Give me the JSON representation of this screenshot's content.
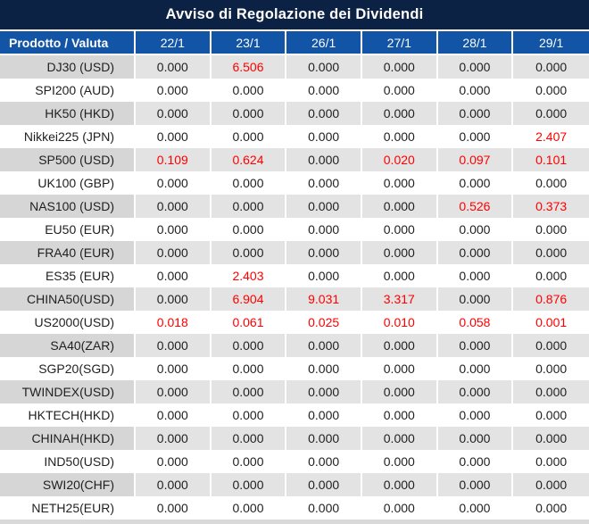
{
  "title": "Avviso di Regolazione dei Dividendi",
  "colors": {
    "title_bg": "#0c2245",
    "header_bg": "#1254a5",
    "row_stripe_label": "#d6d6d6",
    "row_stripe_value": "#e3e3e3",
    "grid_line": "#ffffff",
    "value_text": "#1f1f1f",
    "highlight_red": "#fe0000",
    "bottom_strip": "#d9d9d9"
  },
  "table": {
    "product_header": "Prodotto / Valuta",
    "date_headers": [
      "22/1",
      "23/1",
      "26/1",
      "27/1",
      "28/1",
      "29/1"
    ],
    "rows": [
      {
        "product": "DJ30 (USD)",
        "values": [
          "0.000",
          "6.506",
          "0.000",
          "0.000",
          "0.000",
          "0.000"
        ],
        "red": [
          0,
          1,
          0,
          0,
          0,
          0
        ]
      },
      {
        "product": "SPI200 (AUD)",
        "values": [
          "0.000",
          "0.000",
          "0.000",
          "0.000",
          "0.000",
          "0.000"
        ],
        "red": [
          0,
          0,
          0,
          0,
          0,
          0
        ]
      },
      {
        "product": "HK50 (HKD)",
        "values": [
          "0.000",
          "0.000",
          "0.000",
          "0.000",
          "0.000",
          "0.000"
        ],
        "red": [
          0,
          0,
          0,
          0,
          0,
          0
        ]
      },
      {
        "product": "Nikkei225 (JPN)",
        "values": [
          "0.000",
          "0.000",
          "0.000",
          "0.000",
          "0.000",
          "2.407"
        ],
        "red": [
          0,
          0,
          0,
          0,
          0,
          1
        ]
      },
      {
        "product": "SP500 (USD)",
        "values": [
          "0.109",
          "0.624",
          "0.000",
          "0.020",
          "0.097",
          "0.101"
        ],
        "red": [
          1,
          1,
          0,
          1,
          1,
          1
        ]
      },
      {
        "product": "UK100 (GBP)",
        "values": [
          "0.000",
          "0.000",
          "0.000",
          "0.000",
          "0.000",
          "0.000"
        ],
        "red": [
          0,
          0,
          0,
          0,
          0,
          0
        ]
      },
      {
        "product": "NAS100 (USD)",
        "values": [
          "0.000",
          "0.000",
          "0.000",
          "0.000",
          "0.526",
          "0.373"
        ],
        "red": [
          0,
          0,
          0,
          0,
          1,
          1
        ]
      },
      {
        "product": "EU50 (EUR)",
        "values": [
          "0.000",
          "0.000",
          "0.000",
          "0.000",
          "0.000",
          "0.000"
        ],
        "red": [
          0,
          0,
          0,
          0,
          0,
          0
        ]
      },
      {
        "product": "FRA40 (EUR)",
        "values": [
          "0.000",
          "0.000",
          "0.000",
          "0.000",
          "0.000",
          "0.000"
        ],
        "red": [
          0,
          0,
          0,
          0,
          0,
          0
        ]
      },
      {
        "product": "ES35 (EUR)",
        "values": [
          "0.000",
          "2.403",
          "0.000",
          "0.000",
          "0.000",
          "0.000"
        ],
        "red": [
          0,
          1,
          0,
          0,
          0,
          0
        ]
      },
      {
        "product": "CHINA50(USD)",
        "values": [
          "0.000",
          "6.904",
          "9.031",
          "3.317",
          "0.000",
          "0.876"
        ],
        "red": [
          0,
          1,
          1,
          1,
          0,
          1
        ]
      },
      {
        "product": "US2000(USD)",
        "values": [
          "0.018",
          "0.061",
          "0.025",
          "0.010",
          "0.058",
          "0.001"
        ],
        "red": [
          1,
          1,
          1,
          1,
          1,
          1
        ]
      },
      {
        "product": "SA40(ZAR)",
        "values": [
          "0.000",
          "0.000",
          "0.000",
          "0.000",
          "0.000",
          "0.000"
        ],
        "red": [
          0,
          0,
          0,
          0,
          0,
          0
        ]
      },
      {
        "product": "SGP20(SGD)",
        "values": [
          "0.000",
          "0.000",
          "0.000",
          "0.000",
          "0.000",
          "0.000"
        ],
        "red": [
          0,
          0,
          0,
          0,
          0,
          0
        ]
      },
      {
        "product": "TWINDEX(USD)",
        "values": [
          "0.000",
          "0.000",
          "0.000",
          "0.000",
          "0.000",
          "0.000"
        ],
        "red": [
          0,
          0,
          0,
          0,
          0,
          0
        ]
      },
      {
        "product": "HKTECH(HKD)",
        "values": [
          "0.000",
          "0.000",
          "0.000",
          "0.000",
          "0.000",
          "0.000"
        ],
        "red": [
          0,
          0,
          0,
          0,
          0,
          0
        ]
      },
      {
        "product": "CHINAH(HKD)",
        "values": [
          "0.000",
          "0.000",
          "0.000",
          "0.000",
          "0.000",
          "0.000"
        ],
        "red": [
          0,
          0,
          0,
          0,
          0,
          0
        ]
      },
      {
        "product": "IND50(USD)",
        "values": [
          "0.000",
          "0.000",
          "0.000",
          "0.000",
          "0.000",
          "0.000"
        ],
        "red": [
          0,
          0,
          0,
          0,
          0,
          0
        ]
      },
      {
        "product": "SWI20(CHF)",
        "values": [
          "0.000",
          "0.000",
          "0.000",
          "0.000",
          "0.000",
          "0.000"
        ],
        "red": [
          0,
          0,
          0,
          0,
          0,
          0
        ]
      },
      {
        "product": "NETH25(EUR)",
        "values": [
          "0.000",
          "0.000",
          "0.000",
          "0.000",
          "0.000",
          "0.000"
        ],
        "red": [
          0,
          0,
          0,
          0,
          0,
          0
        ]
      }
    ]
  },
  "chart_data": {
    "type": "table",
    "title": "Avviso di Regolazione dei Dividendi",
    "columns": [
      "Prodotto / Valuta",
      "22/1",
      "23/1",
      "26/1",
      "27/1",
      "28/1",
      "29/1"
    ],
    "rows": [
      [
        "DJ30 (USD)",
        0.0,
        6.506,
        0.0,
        0.0,
        0.0,
        0.0
      ],
      [
        "SPI200 (AUD)",
        0.0,
        0.0,
        0.0,
        0.0,
        0.0,
        0.0
      ],
      [
        "HK50 (HKD)",
        0.0,
        0.0,
        0.0,
        0.0,
        0.0,
        0.0
      ],
      [
        "Nikkei225 (JPN)",
        0.0,
        0.0,
        0.0,
        0.0,
        0.0,
        2.407
      ],
      [
        "SP500 (USD)",
        0.109,
        0.624,
        0.0,
        0.02,
        0.097,
        0.101
      ],
      [
        "UK100 (GBP)",
        0.0,
        0.0,
        0.0,
        0.0,
        0.0,
        0.0
      ],
      [
        "NAS100 (USD)",
        0.0,
        0.0,
        0.0,
        0.0,
        0.526,
        0.373
      ],
      [
        "EU50 (EUR)",
        0.0,
        0.0,
        0.0,
        0.0,
        0.0,
        0.0
      ],
      [
        "FRA40 (EUR)",
        0.0,
        0.0,
        0.0,
        0.0,
        0.0,
        0.0
      ],
      [
        "ES35 (EUR)",
        0.0,
        2.403,
        0.0,
        0.0,
        0.0,
        0.0
      ],
      [
        "CHINA50(USD)",
        0.0,
        6.904,
        9.031,
        3.317,
        0.0,
        0.876
      ],
      [
        "US2000(USD)",
        0.018,
        0.061,
        0.025,
        0.01,
        0.058,
        0.001
      ],
      [
        "SA40(ZAR)",
        0.0,
        0.0,
        0.0,
        0.0,
        0.0,
        0.0
      ],
      [
        "SGP20(SGD)",
        0.0,
        0.0,
        0.0,
        0.0,
        0.0,
        0.0
      ],
      [
        "TWINDEX(USD)",
        0.0,
        0.0,
        0.0,
        0.0,
        0.0,
        0.0
      ],
      [
        "HKTECH(HKD)",
        0.0,
        0.0,
        0.0,
        0.0,
        0.0,
        0.0
      ],
      [
        "CHINAH(HKD)",
        0.0,
        0.0,
        0.0,
        0.0,
        0.0,
        0.0
      ],
      [
        "IND50(USD)",
        0.0,
        0.0,
        0.0,
        0.0,
        0.0,
        0.0
      ],
      [
        "SWI20(CHF)",
        0.0,
        0.0,
        0.0,
        0.0,
        0.0,
        0.0
      ],
      [
        "NETH25(EUR)",
        0.0,
        0.0,
        0.0,
        0.0,
        0.0,
        0.0
      ]
    ],
    "notes": "Red cells indicate non-zero dividend adjustments highlighted in red in the source image"
  }
}
